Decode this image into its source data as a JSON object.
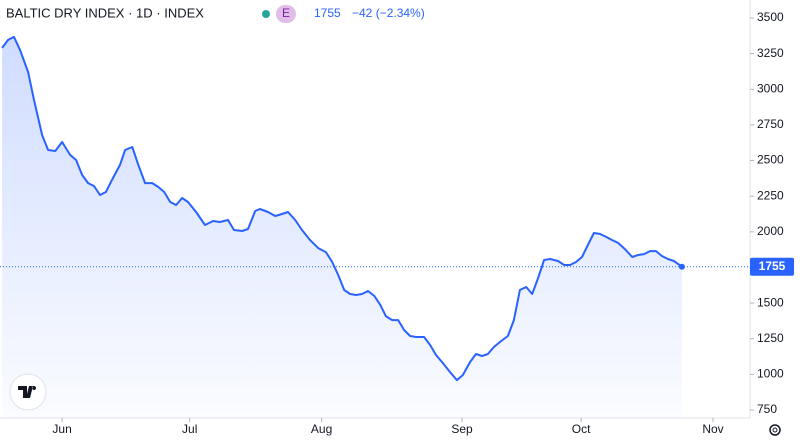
{
  "chart_data": {
    "type": "line",
    "title": "BALTIC DRY INDEX · 1D · INDEX",
    "badge": "E",
    "change": "−42 (−2.34%)",
    "series": [
      {
        "name": "BALTIC DRY INDEX",
        "color": "#2962ff",
        "x": [
          16.9,
          18.3,
          19.7,
          21.1,
          23,
          24.4,
          26.3,
          27.7,
          29.4,
          31,
          32.9,
          34.3,
          35.7,
          37.1,
          38.5,
          39.9,
          41.3,
          42.7,
          44.6,
          45.8,
          47.5,
          48.9,
          50.5,
          52.2,
          53.6,
          55,
          56.4,
          57.8,
          59.2,
          60.6,
          62.5,
          64.6,
          66.5,
          68.1,
          70,
          71.4,
          73.3,
          74.7,
          76.4,
          77.5,
          79.4,
          81.1,
          82.7,
          84.1,
          85.8,
          87.4,
          89.3,
          91.2,
          93,
          94.5,
          95.9,
          97.3,
          98.7,
          100.1,
          101.5,
          102.9,
          104.4,
          105.8,
          107.1,
          108.6,
          110,
          111.4,
          112.8,
          114.2,
          116.1,
          117.5,
          118.9,
          120.3,
          122.2,
          123.8,
          125.2,
          126.9,
          128.3,
          129.7,
          131.1,
          132.5,
          133.9,
          135.8,
          137.2,
          138.6,
          140.1,
          141.5,
          142.9,
          144.3,
          145.7,
          147.6,
          149,
          150.4,
          151.8,
          153.2,
          154.6,
          156,
          157.4,
          158.9,
          160.3,
          161.7,
          163.3,
          165,
          166.4,
          167.8,
          169.2,
          170.6,
          172,
          173.4,
          174.8,
          176.7
        ],
        "values": [
          3290,
          3346,
          3367,
          3276,
          3121,
          2925,
          2679,
          2574,
          2567,
          2630,
          2539,
          2504,
          2399,
          2342,
          2321,
          2258,
          2279,
          2363,
          2469,
          2574,
          2595,
          2469,
          2342,
          2342,
          2314,
          2279,
          2209,
          2188,
          2237,
          2209,
          2139,
          2048,
          2076,
          2069,
          2083,
          2013,
          2006,
          2020,
          2146,
          2160,
          2139,
          2111,
          2125,
          2139,
          2083,
          2013,
          1942,
          1886,
          1858,
          1788,
          1697,
          1592,
          1564,
          1557,
          1564,
          1585,
          1550,
          1487,
          1409,
          1381,
          1381,
          1311,
          1269,
          1262,
          1262,
          1206,
          1136,
          1087,
          1016,
          960,
          995,
          1087,
          1143,
          1129,
          1143,
          1192,
          1227,
          1269,
          1381,
          1592,
          1613,
          1564,
          1676,
          1802,
          1809,
          1795,
          1767,
          1767,
          1788,
          1823,
          1908,
          1992,
          1985,
          1964,
          1942,
          1922,
          1879,
          1823,
          1837,
          1844,
          1865,
          1865,
          1830,
          1809,
          1795,
          1755
        ]
      }
    ],
    "xlim": [
      16.4,
      192.7
    ],
    "xticks": [
      {
        "value": 31,
        "label": "Jun"
      },
      {
        "value": 61,
        "label": "Jul"
      },
      {
        "value": 92,
        "label": "Aug"
      },
      {
        "value": 125,
        "label": "Sep"
      },
      {
        "value": 153,
        "label": "Oct"
      },
      {
        "value": 184,
        "label": "Nov"
      }
    ],
    "ylim": [
      694,
      3626
    ],
    "yticks": [
      750,
      1000,
      1250,
      1500,
      1750,
      2000,
      2250,
      2500,
      2750,
      3000,
      3250,
      3500
    ]
  }
}
